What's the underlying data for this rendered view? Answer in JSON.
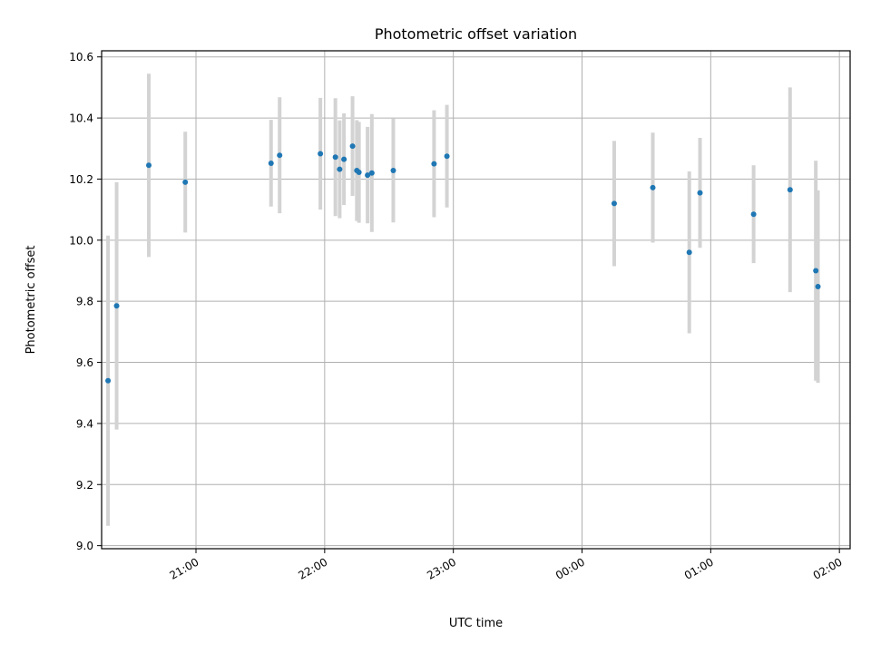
{
  "chart_data": {
    "type": "scatter",
    "title": "Photometric offset variation",
    "xlabel": "UTC time",
    "ylabel": "Photometric offset",
    "x_axis_type": "time",
    "x_range": [
      "20:16",
      "02:05"
    ],
    "ylim": [
      8.99,
      10.62
    ],
    "y_ticks": [
      9.0,
      9.2,
      9.4,
      9.6,
      9.8,
      10.0,
      10.2,
      10.4,
      10.6
    ],
    "y_tick_labels": [
      "9.0",
      "9.2",
      "9.4",
      "9.6",
      "9.8",
      "10.0",
      "10.2",
      "10.4",
      "10.6"
    ],
    "x_ticks": [
      "21:00",
      "22:00",
      "23:00",
      "00:00",
      "01:00",
      "02:00"
    ],
    "x_tick_labels": [
      "21:00",
      "22:00",
      "23:00",
      "00:00",
      "01:00",
      "02:00"
    ],
    "grid": true,
    "legend": "none",
    "colors": {
      "point": "#1f77b4",
      "errorbar": "#d3d3d3"
    },
    "points": [
      {
        "x": "20:19",
        "y": 9.54,
        "yerr": 0.475
      },
      {
        "x": "20:23",
        "y": 9.785,
        "yerr": 0.405
      },
      {
        "x": "20:38",
        "y": 10.245,
        "yerr": 0.3
      },
      {
        "x": "20:55",
        "y": 10.19,
        "yerr": 0.165
      },
      {
        "x": "21:35",
        "y": 10.252,
        "yerr": 0.142
      },
      {
        "x": "21:39",
        "y": 10.278,
        "yerr": 0.19
      },
      {
        "x": "21:58",
        "y": 10.283,
        "yerr": 0.183
      },
      {
        "x": "22:05",
        "y": 10.272,
        "yerr": 0.193
      },
      {
        "x": "22:07",
        "y": 10.232,
        "yerr": 0.16
      },
      {
        "x": "22:09",
        "y": 10.265,
        "yerr": 0.15
      },
      {
        "x": "22:13",
        "y": 10.308,
        "yerr": 0.163
      },
      {
        "x": "22:15",
        "y": 10.228,
        "yerr": 0.165
      },
      {
        "x": "22:16",
        "y": 10.222,
        "yerr": 0.165
      },
      {
        "x": "22:20",
        "y": 10.213,
        "yerr": 0.158
      },
      {
        "x": "22:22",
        "y": 10.22,
        "yerr": 0.193
      },
      {
        "x": "22:32",
        "y": 10.228,
        "yerr": 0.17
      },
      {
        "x": "22:51",
        "y": 10.25,
        "yerr": 0.175
      },
      {
        "x": "22:57",
        "y": 10.275,
        "yerr": 0.168
      },
      {
        "x": "00:15",
        "y": 10.12,
        "yerr": 0.205
      },
      {
        "x": "00:33",
        "y": 10.172,
        "yerr": 0.18
      },
      {
        "x": "00:50",
        "y": 9.96,
        "yerr": 0.265
      },
      {
        "x": "00:55",
        "y": 10.155,
        "yerr": 0.18
      },
      {
        "x": "01:20",
        "y": 10.085,
        "yerr": 0.16
      },
      {
        "x": "01:37",
        "y": 10.165,
        "yerr": 0.335
      },
      {
        "x": "01:49",
        "y": 9.9,
        "yerr": 0.36
      },
      {
        "x": "01:50",
        "y": 9.848,
        "yerr": 0.315
      }
    ]
  }
}
